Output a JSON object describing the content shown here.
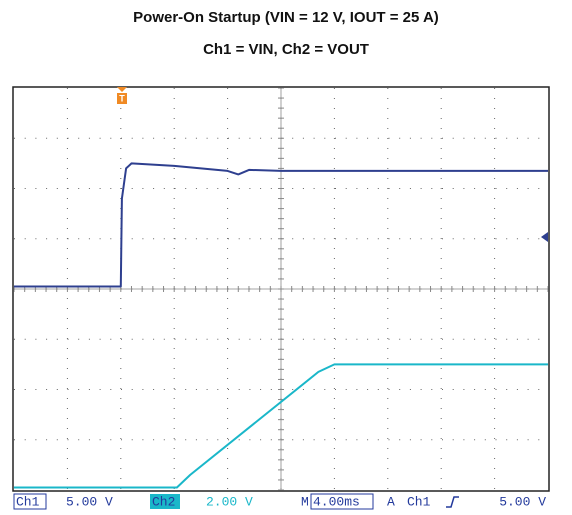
{
  "chart_data": {
    "type": "line",
    "title": "Power-On Startup (VIN = 12 V, IOUT = 25 A)",
    "subtitle": "Ch1 = VIN, Ch2 = VOUT",
    "xlim": [
      0,
      10
    ],
    "ylim": [
      0,
      8
    ],
    "grid": true,
    "series": [
      {
        "name": "Ch1",
        "color": "#2e3f8f",
        "scale": "5.00 V",
        "x": [
          0,
          2.0,
          2.02,
          2.1,
          2.2,
          3.0,
          4.0,
          4.2,
          4.4,
          5.0,
          10
        ],
        "values": [
          4.05,
          4.05,
          5.8,
          6.4,
          6.5,
          6.45,
          6.35,
          6.28,
          6.37,
          6.35,
          6.35
        ]
      },
      {
        "name": "Ch2",
        "color": "#1ab7c9",
        "scale": "2.00 V",
        "x": [
          0,
          3.05,
          3.3,
          5.7,
          6.0,
          10
        ],
        "values": [
          0.05,
          0.05,
          0.3,
          2.35,
          2.5,
          2.5
        ]
      }
    ],
    "status": {
      "timebase_prefix": "M",
      "timebase": "4.00ms",
      "trigger_prefix": "A",
      "trigger_source": "Ch1",
      "trigger_level": "5.00 V"
    }
  }
}
